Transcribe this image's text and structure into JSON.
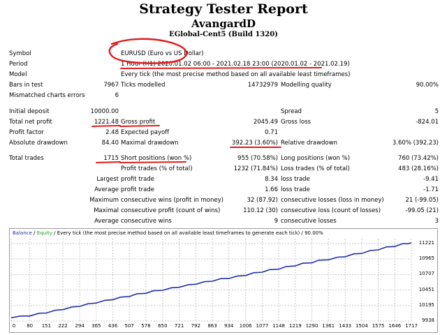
{
  "header": {
    "title": "Strategy Tester Report",
    "expert": "AvangardD",
    "server": "EGlobal-Cent5 (Build 1320)"
  },
  "report": {
    "symbol_label": "Symbol",
    "symbol_value": "EURUSD (Euro vs US Dollar)",
    "period_label": "Period",
    "period_value": "1 Hour (H1) 2020.01.02 06:00 - 2021.02.18 23:00 (2020.01.02 - 2021.02.19)",
    "model_label": "Model",
    "model_value": "Every tick (the most precise method based on all available least timeframes)",
    "bars_label": "Bars in test",
    "bars_value": "7967",
    "ticks_label": "Ticks modelled",
    "ticks_value": "14732979",
    "quality_label": "Modelling quality",
    "quality_value": "90.00%",
    "mismatch_label": "Mismatched charts errors",
    "mismatch_value": "6",
    "initial_deposit_label": "Initial deposit",
    "initial_deposit_value": "10000.00",
    "spread_label": "Spread",
    "spread_value": "5",
    "net_profit_label": "Total net profit",
    "net_profit_value": "1221.48",
    "gross_profit_label": "Gross profit",
    "gross_profit_value": "2045.49",
    "gross_loss_label": "Gross loss",
    "gross_loss_value": "-824.01",
    "profit_factor_label": "Profit factor",
    "profit_factor_value": "2.48",
    "expected_payoff_label": "Expected payoff",
    "expected_payoff_value": "0.71",
    "abs_dd_label": "Absolute drawdown",
    "abs_dd_value": "84.40",
    "max_dd_label": "Maximal drawdown",
    "max_dd_value": "392.23 (3.60%)",
    "rel_dd_label": "Relative drawdown",
    "rel_dd_value": "3.60% (392.23)",
    "total_trades_label": "Total trades",
    "total_trades_value": "1715",
    "short_label": "Short positions (won %)",
    "short_value": "955 (70.58%)",
    "long_label": "Long positions (won %)",
    "long_value": "760 (73.42%)",
    "profit_trades_label": "Profit trades (% of total)",
    "profit_trades_value": "1232 (71.84%)",
    "loss_trades_label": "Loss trades (% of total)",
    "loss_trades_value": "483 (28.16%)",
    "largest_label": "Largest",
    "largest_profit_label": "profit trade",
    "largest_profit_value": "8.34",
    "largest_loss_label": "loss trade",
    "largest_loss_value": "-9.41",
    "average_label": "Average",
    "average_profit_label": "profit trade",
    "average_profit_value": "1.66",
    "average_loss_label": "loss trade",
    "average_loss_value": "-1.71",
    "maximum_label": "Maximum",
    "max_cons_wins_label": "consecutive wins (profit in money)",
    "max_cons_wins_value": "32 (87.92)",
    "max_cons_losses_label": "consecutive losses (loss in money)",
    "max_cons_losses_value": "21 (-99.05)",
    "maximal_label": "Maximal",
    "maximal_cons_profit_label": "consecutive profit (count of wins)",
    "maximal_cons_profit_value": "110.12 (30)",
    "maximal_cons_loss_label": "consecutive loss (count of losses)",
    "maximal_cons_loss_value": "-99.05 (21)",
    "average2_label": "Average",
    "avg_cons_wins_label": "consecutive wins",
    "avg_cons_wins_value": "9",
    "avg_cons_losses_label": "consecutive losses",
    "avg_cons_losses_value": "3"
  },
  "colors": {
    "balance": "#1f2fa8",
    "equity": "#1e9e1e",
    "annotation": "#e01a1a",
    "grid": "#c8c8c8"
  },
  "chart_data": {
    "type": "line",
    "legend": {
      "balance": "Balance",
      "slash": "/",
      "equity": "Equity",
      "rest": "/ Every tick (the most precise method based on all available least timeframes to generate each tick) / 90.00%"
    },
    "yticks": [
      "11221",
      "10965",
      "10707",
      "10451",
      "10195",
      "9938"
    ],
    "ytick_values": [
      11221,
      10965,
      10707,
      10451,
      10195,
      9938
    ],
    "xticks": [
      "0",
      "80",
      "151",
      "222",
      "294",
      "365",
      "436",
      "507",
      "578",
      "650",
      "721",
      "792",
      "863",
      "934",
      "1006",
      "1077",
      "1148",
      "1219",
      "1290",
      "1361",
      "1433",
      "1504",
      "1575",
      "1646",
      "1717"
    ],
    "xtick_values": [
      0,
      80,
      151,
      222,
      294,
      365,
      436,
      507,
      578,
      650,
      721,
      792,
      863,
      934,
      1006,
      1077,
      1148,
      1219,
      1290,
      1361,
      1433,
      1504,
      1575,
      1646,
      1717
    ],
    "xlim": [
      0,
      1717
    ],
    "ylim": [
      9938,
      11300
    ],
    "series": [
      {
        "name": "Balance",
        "x": [
          0,
          40,
          80,
          120,
          151,
          190,
          222,
          260,
          294,
          330,
          365,
          400,
          436,
          470,
          507,
          540,
          578,
          610,
          650,
          690,
          721,
          760,
          792,
          830,
          863,
          900,
          934,
          970,
          1006,
          1040,
          1077,
          1110,
          1148,
          1180,
          1219,
          1250,
          1290,
          1320,
          1361,
          1400,
          1433,
          1470,
          1504,
          1540,
          1575,
          1610,
          1646,
          1680,
          1700,
          1717
        ],
        "y": [
          10000,
          10012,
          10030,
          10058,
          10080,
          10108,
          10135,
          10162,
          10190,
          10215,
          10245,
          10270,
          10300,
          10325,
          10352,
          10380,
          10405,
          10430,
          10455,
          10480,
          10505,
          10530,
          10555,
          10580,
          10605,
          10630,
          10650,
          10672,
          10700,
          10728,
          10755,
          10780,
          10805,
          10830,
          10858,
          10885,
          10910,
          10935,
          10960,
          10985,
          11010,
          11040,
          11065,
          11095,
          11125,
          11155,
          11180,
          11210,
          11225,
          11221
        ]
      }
    ]
  }
}
